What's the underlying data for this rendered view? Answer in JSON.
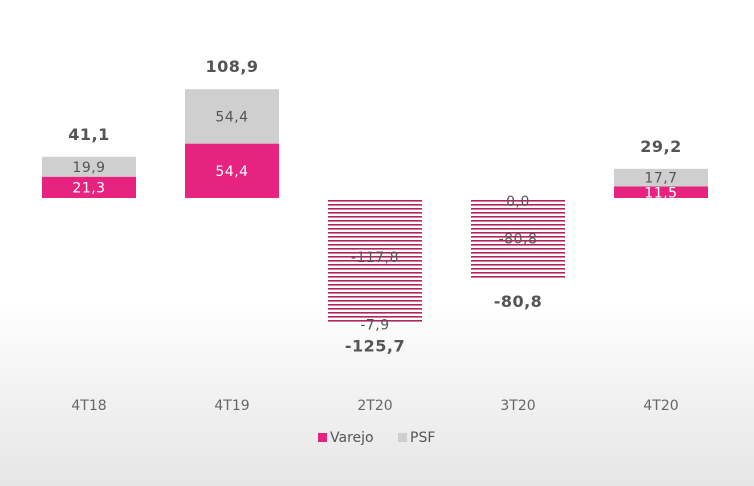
{
  "chart_data": {
    "type": "bar",
    "stacked": true,
    "title": "",
    "xlabel": "",
    "ylabel": "",
    "categories": [
      "4T18",
      "4T19",
      "2T20",
      "3T20",
      "4T20"
    ],
    "series": [
      {
        "name": "Varejo",
        "color": "#e6237f",
        "values": [
          21.3,
          54.4,
          -117.8,
          -80.8,
          11.5
        ],
        "labels": [
          "21,3",
          "54,4",
          "-117,8",
          "-80,8",
          "11,5"
        ]
      },
      {
        "name": "PSF",
        "color": "#cfcfcf",
        "values": [
          19.9,
          54.4,
          -7.9,
          0.0,
          17.7
        ],
        "labels": [
          "19,9",
          "54,4",
          "-7,9",
          "0,0",
          "17,7"
        ]
      }
    ],
    "totals": [
      41.1,
      108.9,
      -125.7,
      -80.8,
      29.2
    ],
    "total_labels": [
      "41,1",
      "108,9",
      "-125,7",
      "-80,8",
      "29,2"
    ],
    "ylim": [
      -130,
      110
    ],
    "negative_bar_style": "hatched",
    "grid": false,
    "legend_position": "bottom-center"
  }
}
